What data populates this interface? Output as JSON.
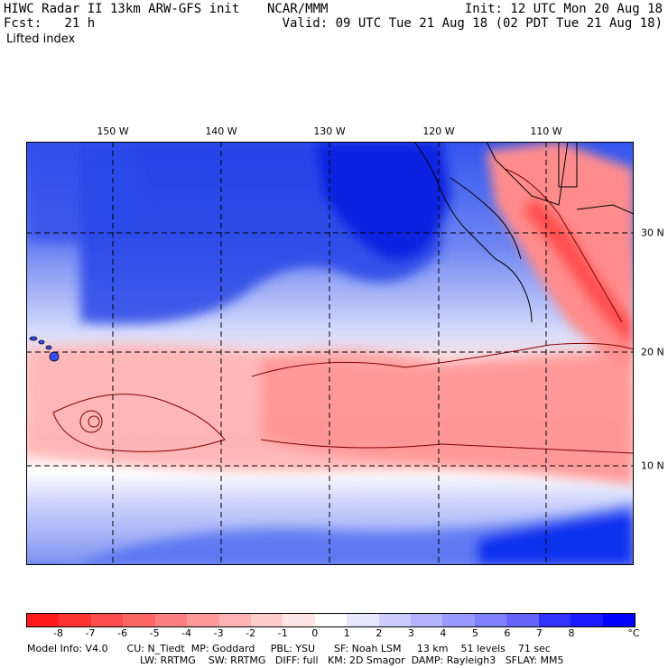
{
  "header": {
    "title": "HIWC Radar II 13km ARW-GFS init",
    "forecast": "Fcst:   21 h",
    "field": "Lifted index",
    "center": "NCAR/MMM",
    "init": "Init: 12 UTC Mon 20 Aug 18",
    "valid": "Valid: 09 UTC Tue 21 Aug 18 (02 PDT Tue 21 Aug 18)"
  },
  "map": {
    "longitude_labels": [
      "150 W",
      "140 W",
      "130 W",
      "120 W",
      "110 W"
    ],
    "latitude_labels": [
      "30 N",
      "20 N",
      "10 N"
    ],
    "grid_style": "dashed",
    "features": [
      "Hawaiian Islands",
      "Baja California",
      "California coast",
      "tropical cyclone spiral near 150 W, 13 N"
    ]
  },
  "colorbar": {
    "labels": [
      "-8",
      "-7",
      "-6",
      "-5",
      "-4",
      "-3",
      "-2",
      "-1",
      "0",
      "1",
      "2",
      "3",
      "4",
      "5",
      "6",
      "7",
      "8"
    ],
    "unit": "°C",
    "colors": [
      "#ff1a1a",
      "#ff3333",
      "#ff4d4d",
      "#ff6666",
      "#ff8080",
      "#ff9999",
      "#ffb3b3",
      "#ffcccc",
      "#ffe6e6",
      "#ffffff",
      "#e6e6ff",
      "#ccccff",
      "#b3b3ff",
      "#9999ff",
      "#8080ff",
      "#6666ff",
      "#3333ff",
      "#1a1aff",
      "#0000ff"
    ]
  },
  "footer": {
    "line1": "Model Info: V4.0      CU: N_Tiedt  MP: Goddard     PBL: YSU      SF: Noah LSM     13 km    51 levels    71 sec",
    "line2": "LW: RRTMG    SW: RRTMG   DIFF: full   KM: 2D Smagor  DAMP: Rayleigh3   SFLAY: MM5"
  }
}
